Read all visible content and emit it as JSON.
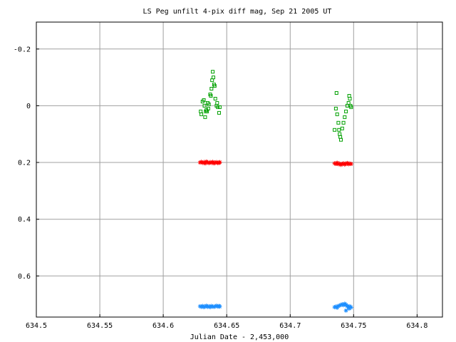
{
  "chart_data": {
    "type": "scatter",
    "title": "LS Peg unfilt 4-pix diff mag, Sep 21 2005 UT",
    "xlabel": "Julian Date - 2,453,000",
    "ylabel": "",
    "xlim": [
      634.5,
      634.82
    ],
    "ylim": [
      0.745,
      -0.295
    ],
    "y_inverted": true,
    "grid": true,
    "x_ticks": [
      634.5,
      634.55,
      634.6,
      634.65,
      634.7,
      634.75,
      634.8
    ],
    "x_tick_labels": [
      "634.5",
      "634.55",
      "634.6",
      "634.65",
      "634.7",
      "634.75",
      "634.8"
    ],
    "y_ticks": [
      -0.2,
      0,
      0.2,
      0.4,
      0.6
    ],
    "y_tick_labels": [
      "-0.2",
      "0",
      "0.2",
      "0.4",
      "0.6"
    ],
    "series": [
      {
        "marker": "square-open",
        "color": "#00a000",
        "points": [
          [
            634.6295,
            0.02
          ],
          [
            634.63,
            0.03
          ],
          [
            634.631,
            -0.015
          ],
          [
            634.632,
            -0.02
          ],
          [
            634.6325,
            0.0
          ],
          [
            634.633,
            0.04
          ],
          [
            634.6335,
            0.02
          ],
          [
            634.634,
            0.015
          ],
          [
            634.6345,
            0.02
          ],
          [
            634.635,
            -0.01
          ],
          [
            634.6355,
            0.01
          ],
          [
            634.636,
            -0.005
          ],
          [
            634.637,
            -0.04
          ],
          [
            634.6375,
            -0.035
          ],
          [
            634.638,
            -0.06
          ],
          [
            634.6385,
            -0.09
          ],
          [
            634.639,
            -0.12
          ],
          [
            634.6395,
            -0.1
          ],
          [
            634.64,
            -0.075
          ],
          [
            634.6405,
            -0.07
          ],
          [
            634.641,
            -0.025
          ],
          [
            634.642,
            0.0
          ],
          [
            634.6425,
            -0.01
          ],
          [
            634.643,
            0.005
          ],
          [
            634.644,
            0.025
          ],
          [
            634.6445,
            0.005
          ],
          [
            634.735,
            0.085
          ],
          [
            634.736,
            0.01
          ],
          [
            634.7365,
            -0.045
          ],
          [
            634.737,
            0.03
          ],
          [
            634.738,
            0.06
          ],
          [
            634.7385,
            0.085
          ],
          [
            634.739,
            0.1
          ],
          [
            634.7395,
            0.11
          ],
          [
            634.74,
            0.12
          ],
          [
            634.741,
            0.08
          ],
          [
            634.742,
            0.06
          ],
          [
            634.743,
            0.04
          ],
          [
            634.744,
            0.02
          ],
          [
            634.745,
            0.0
          ],
          [
            634.746,
            -0.01
          ],
          [
            634.7465,
            -0.035
          ],
          [
            634.747,
            -0.025
          ],
          [
            634.7475,
            0.0
          ],
          [
            634.748,
            0.005
          ]
        ]
      },
      {
        "marker": "star",
        "color": "#ff0000",
        "points": [
          [
            634.629,
            0.2
          ],
          [
            634.63,
            0.198
          ],
          [
            634.631,
            0.201
          ],
          [
            634.632,
            0.199
          ],
          [
            634.633,
            0.203
          ],
          [
            634.634,
            0.197
          ],
          [
            634.635,
            0.2
          ],
          [
            634.636,
            0.202
          ],
          [
            634.637,
            0.199
          ],
          [
            634.638,
            0.201
          ],
          [
            634.639,
            0.198
          ],
          [
            634.64,
            0.203
          ],
          [
            634.641,
            0.2
          ],
          [
            634.642,
            0.199
          ],
          [
            634.643,
            0.202
          ],
          [
            634.644,
            0.201
          ],
          [
            634.6445,
            0.199
          ],
          [
            634.735,
            0.203
          ],
          [
            634.736,
            0.205
          ],
          [
            634.737,
            0.201
          ],
          [
            634.738,
            0.206
          ],
          [
            634.739,
            0.204
          ],
          [
            634.74,
            0.208
          ],
          [
            634.741,
            0.205
          ],
          [
            634.742,
            0.203
          ],
          [
            634.743,
            0.207
          ],
          [
            634.744,
            0.204
          ],
          [
            634.745,
            0.202
          ],
          [
            634.746,
            0.206
          ],
          [
            634.747,
            0.204
          ],
          [
            634.748,
            0.205
          ]
        ]
      },
      {
        "marker": "star",
        "color": "#1e8fff",
        "points": [
          [
            634.629,
            0.707
          ],
          [
            634.63,
            0.709
          ],
          [
            634.631,
            0.706
          ],
          [
            634.632,
            0.71
          ],
          [
            634.633,
            0.708
          ],
          [
            634.634,
            0.705
          ],
          [
            634.635,
            0.709
          ],
          [
            634.636,
            0.707
          ],
          [
            634.637,
            0.71
          ],
          [
            634.638,
            0.706
          ],
          [
            634.639,
            0.708
          ],
          [
            634.64,
            0.709
          ],
          [
            634.641,
            0.707
          ],
          [
            634.642,
            0.705
          ],
          [
            634.643,
            0.708
          ],
          [
            634.644,
            0.706
          ],
          [
            634.6445,
            0.708
          ],
          [
            634.735,
            0.71
          ],
          [
            634.736,
            0.708
          ],
          [
            634.737,
            0.712
          ],
          [
            634.738,
            0.706
          ],
          [
            634.739,
            0.704
          ],
          [
            634.74,
            0.702
          ],
          [
            634.741,
            0.7
          ],
          [
            634.742,
            0.703
          ],
          [
            634.743,
            0.698
          ],
          [
            634.744,
            0.702
          ],
          [
            634.745,
            0.706
          ],
          [
            634.746,
            0.71
          ],
          [
            634.747,
            0.707
          ],
          [
            634.748,
            0.711
          ],
          [
            634.744,
            0.722
          ],
          [
            634.7465,
            0.715
          ]
        ]
      }
    ]
  }
}
